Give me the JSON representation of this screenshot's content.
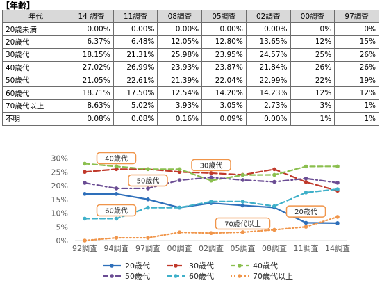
{
  "page_title": "【年齢】",
  "table": {
    "headers": [
      "年代",
      "14 調査",
      "11調査",
      "08調査",
      "05調査",
      "02調査",
      "00調査",
      "97調査"
    ],
    "rows": [
      [
        "20歳未満",
        "0.00%",
        "0.00%",
        "0.00%",
        "0.00%",
        "0.00%",
        "0%",
        "0%"
      ],
      [
        "20歳代",
        "6.37%",
        "6.48%",
        "12.05%",
        "12.80%",
        "13.65%",
        "12%",
        "15%"
      ],
      [
        "30歳代",
        "18.15%",
        "21.31%",
        "25.98%",
        "23.95%",
        "24.57%",
        "25%",
        "26%"
      ],
      [
        "40歳代",
        "27.02%",
        "26.99%",
        "23.93%",
        "23.87%",
        "21.84%",
        "26%",
        "26%"
      ],
      [
        "50歳代",
        "21.05%",
        "22.61%",
        "21.39%",
        "22.04%",
        "22.99%",
        "22%",
        "19%"
      ],
      [
        "60歳代",
        "18.71%",
        "17.50%",
        "12.54%",
        "14.20%",
        "14.23%",
        "12%",
        "12%"
      ],
      [
        "70歳代以上",
        "8.63%",
        "5.02%",
        "3.93%",
        "3.05%",
        "2.73%",
        "3%",
        "1%"
      ],
      [
        "不明",
        "0.08%",
        "0.08%",
        "0.16%",
        "0.09%",
        "0.00%",
        "1%",
        "1%"
      ]
    ]
  },
  "chart_data": {
    "type": "line",
    "categories": [
      "92調査",
      "94調査",
      "97調査",
      "00調査",
      "02調査",
      "05調査",
      "08調査",
      "11調査",
      "14調査"
    ],
    "ylim": [
      0,
      30
    ],
    "yticks": [
      "0%",
      "5%",
      "10%",
      "15%",
      "20%",
      "25%",
      "30%"
    ],
    "ytick_values": [
      0,
      5,
      10,
      15,
      20,
      25,
      30
    ],
    "series": [
      {
        "name": "20歳代",
        "color": "#2e6fba",
        "dash": "solid",
        "marker": "circle",
        "values": [
          17,
          17,
          15,
          12,
          13.65,
          12.8,
          12.05,
          6.48,
          6.37
        ]
      },
      {
        "name": "30歳代",
        "color": "#c0392b",
        "dash": "long-dash",
        "marker": "circle",
        "values": [
          25,
          26,
          26,
          25,
          24.57,
          23.95,
          25.98,
          21.31,
          18.15
        ]
      },
      {
        "name": "40歳代",
        "color": "#8bbf4f",
        "dash": "dash",
        "marker": "circle",
        "values": [
          28,
          27,
          26,
          26,
          21.84,
          23.87,
          23.93,
          26.99,
          27.02
        ]
      },
      {
        "name": "50歳代",
        "color": "#6a4c93",
        "dash": "dash-dot",
        "marker": "circle",
        "values": [
          21,
          19,
          19,
          22,
          22.99,
          22.04,
          21.39,
          22.61,
          21.05
        ]
      },
      {
        "name": "60歳代",
        "color": "#3fb0c9",
        "dash": "dash",
        "marker": "circle",
        "values": [
          8,
          8,
          12,
          12,
          14.23,
          14.2,
          12.54,
          17.5,
          18.71
        ]
      },
      {
        "name": "70歳代以上",
        "color": "#f0954a",
        "dash": "dot",
        "marker": "circle",
        "values": [
          0,
          1,
          1,
          3,
          2.73,
          3.05,
          3.93,
          5.02,
          8.63
        ]
      }
    ],
    "annotations": [
      {
        "text": "40歳代",
        "color": "#f0954a",
        "anchor_category": "94調査",
        "anchor_value": 30
      },
      {
        "text": "50歳代",
        "color": "#f0954a",
        "anchor_category": "97調査",
        "anchor_value": 21.9
      },
      {
        "text": "30歳代",
        "color": "#f0954a",
        "anchor_category": "02調査",
        "anchor_value": 27.5
      },
      {
        "text": "60歳代",
        "color": "#f0954a",
        "anchor_category": "94調査",
        "anchor_value": 11
      },
      {
        "text": "70歳代以上",
        "color": "#f0954a",
        "anchor_category": "05調査",
        "anchor_value": 6.2
      },
      {
        "text": "20歳代",
        "color": "#f0954a",
        "anchor_category": "11調査",
        "anchor_value": 10.6
      }
    ],
    "grid": false,
    "legend_position": "bottom"
  }
}
